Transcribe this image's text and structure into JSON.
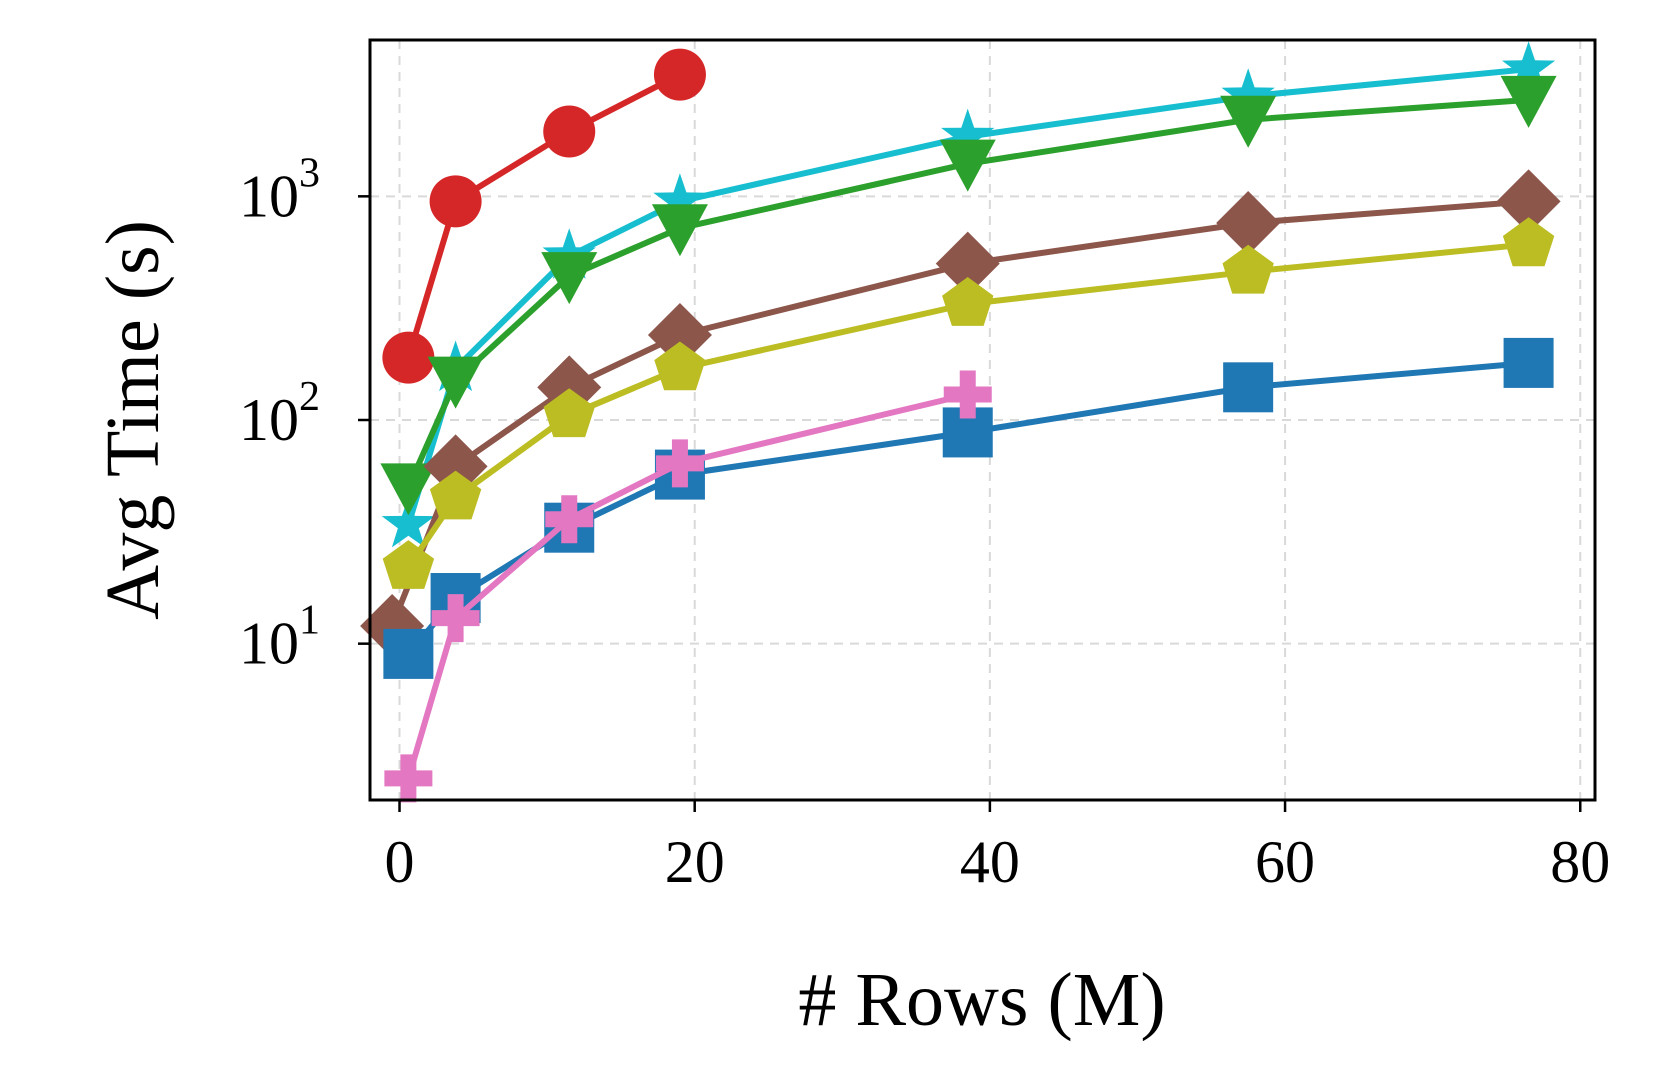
{
  "chart_data": {
    "type": "line",
    "title": "",
    "xlabel": "# Rows (M)",
    "ylabel": "Avg Time (s)",
    "xlim": [
      -2,
      81
    ],
    "ylim": [
      2,
      5000
    ],
    "yscale": "log",
    "grid": true,
    "legend": "none",
    "x_ticks": [
      {
        "value": 0,
        "label": "0"
      },
      {
        "value": 20,
        "label": "20"
      },
      {
        "value": 40,
        "label": "40"
      },
      {
        "value": 60,
        "label": "60"
      },
      {
        "value": 80,
        "label": "80"
      }
    ],
    "y_ticks": [
      {
        "value": 10,
        "base": "10",
        "exp": "1"
      },
      {
        "value": 100,
        "base": "10",
        "exp": "2"
      },
      {
        "value": 1000,
        "base": "10",
        "exp": "3"
      }
    ],
    "series": [
      {
        "name": "red-circle",
        "color": "#d62728",
        "marker": "circle",
        "x": [
          0.6,
          3.8,
          11.5,
          19
        ],
        "y": [
          190,
          950,
          1950,
          3500
        ]
      },
      {
        "name": "cyan-star",
        "color": "#17becf",
        "marker": "star",
        "x": [
          0.6,
          3.8,
          11.5,
          19,
          38.5,
          57.5,
          76.5
        ],
        "y": [
          34,
          170,
          540,
          950,
          1850,
          2800,
          3700
        ]
      },
      {
        "name": "green-triangle",
        "color": "#2ca02c",
        "marker": "triangle-down",
        "x": [
          0.6,
          3.8,
          11.5,
          19,
          38.5,
          57.5,
          76.5
        ],
        "y": [
          50,
          150,
          440,
          720,
          1400,
          2200,
          2700
        ]
      },
      {
        "name": "brown-diamond",
        "color": "#8c564b",
        "marker": "diamond",
        "x": [
          -0.5,
          3.8,
          11.5,
          19,
          38.5,
          57.5,
          76.5
        ],
        "y": [
          12,
          62,
          140,
          240,
          500,
          760,
          950
        ]
      },
      {
        "name": "olive-pentagon",
        "color": "#bcbd22",
        "marker": "pentagon",
        "x": [
          0.6,
          3.8,
          11.5,
          19,
          38.5,
          57.5,
          76.5
        ],
        "y": [
          22,
          45,
          105,
          170,
          330,
          460,
          610
        ]
      },
      {
        "name": "blue-square",
        "color": "#1f77b4",
        "marker": "square",
        "x": [
          0.6,
          3.8,
          11.5,
          19,
          38.5,
          57.5,
          76.5
        ],
        "y": [
          9,
          16,
          33,
          57,
          88,
          140,
          180
        ]
      },
      {
        "name": "pink-plus",
        "color": "#e377c2",
        "marker": "plus",
        "x": [
          0.6,
          3.8,
          11.5,
          19,
          38.5
        ],
        "y": [
          2.5,
          13,
          36,
          64,
          130
        ]
      }
    ]
  }
}
